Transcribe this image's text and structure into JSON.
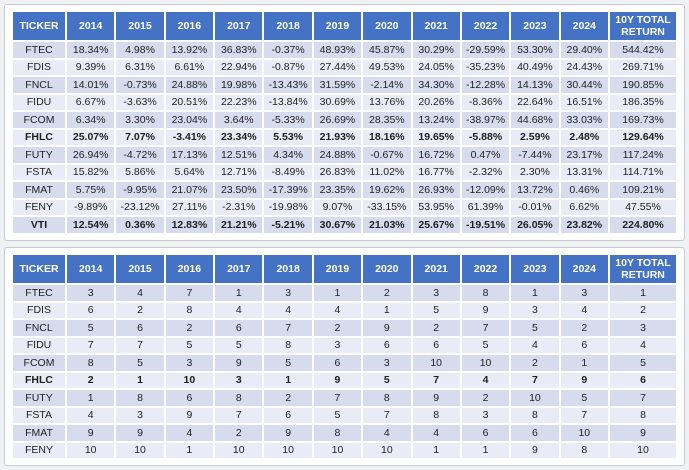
{
  "colors": {
    "header_bg": "#4472C4",
    "header_text": "#FFFFFF",
    "row_band_dark": "#D6DCEE",
    "row_band_light": "#E9ECF6",
    "cell_text": "#1F1F1F",
    "panel_bg": "#FFFFFF",
    "panel_border": "#C8CBD1",
    "page_bg": "#F0F1F3"
  },
  "chart_data": [
    {
      "type": "table",
      "id": "annual-returns-table",
      "columns": [
        "TICKER",
        "2014",
        "2015",
        "2016",
        "2017",
        "2018",
        "2019",
        "2020",
        "2021",
        "2022",
        "2023",
        "2024",
        "10Y TOTAL RETURN"
      ],
      "rows": [
        {
          "ticker": "FTEC",
          "bold": false,
          "values": [
            "18.34%",
            "4.98%",
            "13.92%",
            "36.83%",
            "-0.37%",
            "48.93%",
            "45.87%",
            "30.29%",
            "-29.59%",
            "53.30%",
            "29.40%",
            "544.42%"
          ]
        },
        {
          "ticker": "FDIS",
          "bold": false,
          "values": [
            "9.39%",
            "6.31%",
            "6.61%",
            "22.94%",
            "-0.87%",
            "27.44%",
            "49.53%",
            "24.05%",
            "-35.23%",
            "40.49%",
            "24.43%",
            "269.71%"
          ]
        },
        {
          "ticker": "FNCL",
          "bold": false,
          "values": [
            "14.01%",
            "-0.73%",
            "24.88%",
            "19.98%",
            "-13.43%",
            "31.59%",
            "-2.14%",
            "34.30%",
            "-12.28%",
            "14.13%",
            "30.44%",
            "190.85%"
          ]
        },
        {
          "ticker": "FIDU",
          "bold": false,
          "values": [
            "6.67%",
            "-3.63%",
            "20.51%",
            "22.23%",
            "-13.84%",
            "30.69%",
            "13.76%",
            "20.26%",
            "-8.36%",
            "22.64%",
            "16.51%",
            "186.35%"
          ]
        },
        {
          "ticker": "FCOM",
          "bold": false,
          "values": [
            "6.34%",
            "3.30%",
            "23.04%",
            "3.64%",
            "-5.33%",
            "26.69%",
            "28.35%",
            "13.24%",
            "-38.97%",
            "44.68%",
            "33.03%",
            "169.73%"
          ]
        },
        {
          "ticker": "FHLC",
          "bold": true,
          "values": [
            "25.07%",
            "7.07%",
            "-3.41%",
            "23.34%",
            "5.53%",
            "21.93%",
            "18.16%",
            "19.65%",
            "-5.88%",
            "2.59%",
            "2.48%",
            "129.64%"
          ]
        },
        {
          "ticker": "FUTY",
          "bold": false,
          "values": [
            "26.94%",
            "-4.72%",
            "17.13%",
            "12.51%",
            "4.34%",
            "24.88%",
            "-0.67%",
            "16.72%",
            "0.47%",
            "-7.44%",
            "23.17%",
            "117.24%"
          ]
        },
        {
          "ticker": "FSTA",
          "bold": false,
          "values": [
            "15.82%",
            "5.86%",
            "5.64%",
            "12.71%",
            "-8.49%",
            "26.83%",
            "11.02%",
            "16.77%",
            "-2.32%",
            "2.30%",
            "13.31%",
            "114.71%"
          ]
        },
        {
          "ticker": "FMAT",
          "bold": false,
          "values": [
            "5.75%",
            "-9.95%",
            "21.07%",
            "23.50%",
            "-17.39%",
            "23.35%",
            "19.62%",
            "26.93%",
            "-12.09%",
            "13.72%",
            "0.46%",
            "109.21%"
          ]
        },
        {
          "ticker": "FENY",
          "bold": false,
          "values": [
            "-9.89%",
            "-23.12%",
            "27.11%",
            "-2.31%",
            "-19.98%",
            "9.07%",
            "-33.15%",
            "53.95%",
            "61.39%",
            "-0.01%",
            "6.62%",
            "47.55%"
          ]
        },
        {
          "ticker": "VTI",
          "bold": true,
          "values": [
            "12.54%",
            "0.36%",
            "12.83%",
            "21.21%",
            "-5.21%",
            "30.67%",
            "21.03%",
            "25.67%",
            "-19.51%",
            "26.05%",
            "23.82%",
            "224.80%"
          ]
        }
      ]
    },
    {
      "type": "table",
      "id": "annual-rankings-table",
      "columns": [
        "TICKER",
        "2014",
        "2015",
        "2016",
        "2017",
        "2018",
        "2019",
        "2020",
        "2021",
        "2022",
        "2023",
        "2024",
        "10Y TOTAL RETURN"
      ],
      "rows": [
        {
          "ticker": "FTEC",
          "bold": false,
          "values": [
            "3",
            "4",
            "7",
            "1",
            "3",
            "1",
            "2",
            "3",
            "8",
            "1",
            "3",
            "1"
          ]
        },
        {
          "ticker": "FDIS",
          "bold": false,
          "values": [
            "6",
            "2",
            "8",
            "4",
            "4",
            "4",
            "1",
            "5",
            "9",
            "3",
            "4",
            "2"
          ]
        },
        {
          "ticker": "FNCL",
          "bold": false,
          "values": [
            "5",
            "6",
            "2",
            "6",
            "7",
            "2",
            "9",
            "2",
            "7",
            "5",
            "2",
            "3"
          ]
        },
        {
          "ticker": "FIDU",
          "bold": false,
          "values": [
            "7",
            "7",
            "5",
            "5",
            "8",
            "3",
            "6",
            "6",
            "5",
            "4",
            "6",
            "4"
          ]
        },
        {
          "ticker": "FCOM",
          "bold": false,
          "values": [
            "8",
            "5",
            "3",
            "9",
            "5",
            "6",
            "3",
            "10",
            "10",
            "2",
            "1",
            "5"
          ]
        },
        {
          "ticker": "FHLC",
          "bold": true,
          "values": [
            "2",
            "1",
            "10",
            "3",
            "1",
            "9",
            "5",
            "7",
            "4",
            "7",
            "9",
            "6"
          ]
        },
        {
          "ticker": "FUTY",
          "bold": false,
          "values": [
            "1",
            "8",
            "6",
            "8",
            "2",
            "7",
            "8",
            "9",
            "2",
            "10",
            "5",
            "7"
          ]
        },
        {
          "ticker": "FSTA",
          "bold": false,
          "values": [
            "4",
            "3",
            "9",
            "7",
            "6",
            "5",
            "7",
            "8",
            "3",
            "8",
            "7",
            "8"
          ]
        },
        {
          "ticker": "FMAT",
          "bold": false,
          "values": [
            "9",
            "9",
            "4",
            "2",
            "9",
            "8",
            "4",
            "4",
            "6",
            "6",
            "10",
            "9"
          ]
        },
        {
          "ticker": "FENY",
          "bold": false,
          "values": [
            "10",
            "10",
            "1",
            "10",
            "10",
            "10",
            "10",
            "1",
            "1",
            "9",
            "8",
            "10"
          ]
        }
      ]
    }
  ]
}
